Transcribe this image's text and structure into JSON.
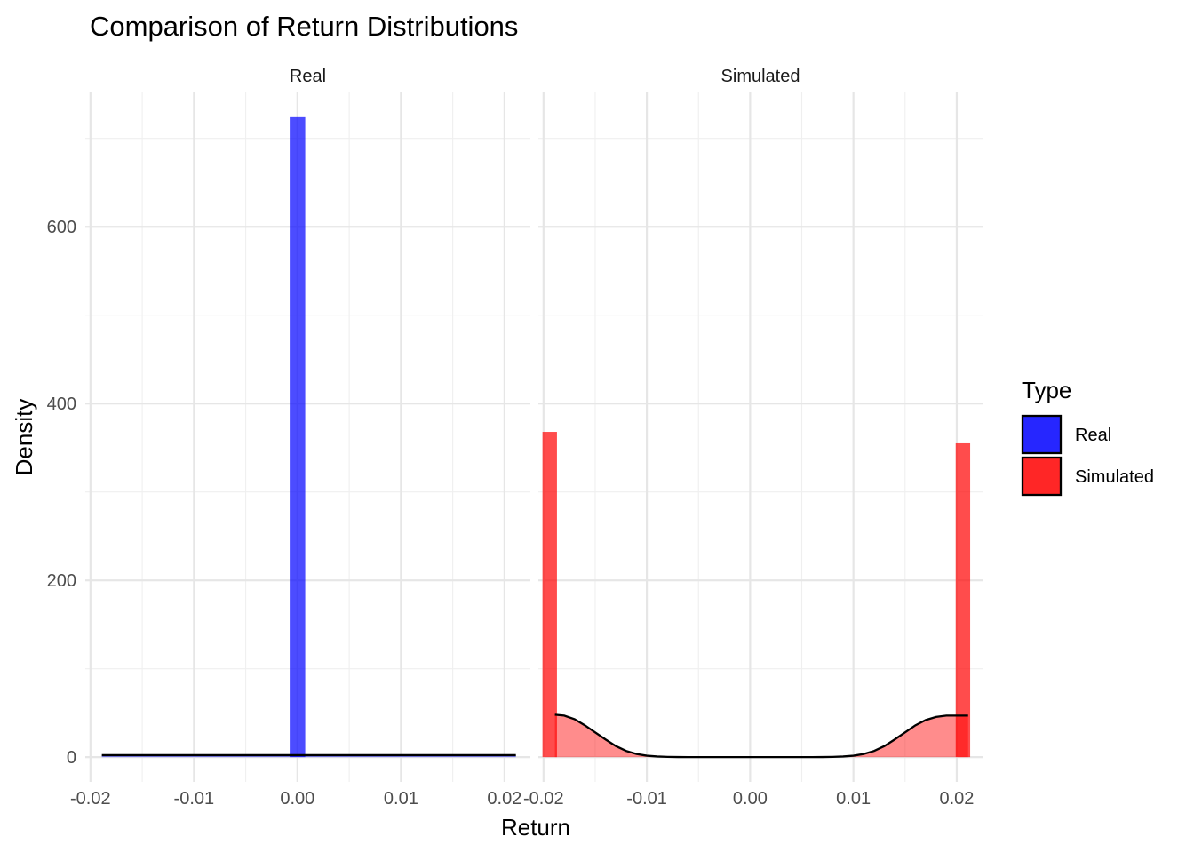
{
  "chart_data": {
    "type": "histogram",
    "title": "Comparison of Return Distributions",
    "xlabel": "Return",
    "ylabel": "Density",
    "xlim": [
      -0.0205,
      0.0225
    ],
    "ylim": [
      -28,
      752
    ],
    "x_ticks": [
      -0.02,
      -0.01,
      0.0,
      0.01,
      0.02
    ],
    "x_tick_labels": [
      "-0.02",
      "-0.01",
      "0.00",
      "0.01",
      "0.02"
    ],
    "y_ticks": [
      0,
      200,
      400,
      600
    ],
    "y_tick_labels": [
      "0",
      "200",
      "400",
      "600"
    ],
    "grid": true,
    "legend": {
      "title": "Type",
      "position": "right",
      "entries": [
        {
          "label": "Real",
          "color": "#0000ff"
        },
        {
          "label": "Simulated",
          "color": "#ff0000"
        }
      ]
    },
    "panels": [
      {
        "strip": "Real",
        "fill": "#0000ff",
        "bars": [
          {
            "x0": -0.00075,
            "x1": 0.00075,
            "density": 724
          }
        ],
        "density_curve": [
          [
            -0.0189,
            2.2
          ],
          [
            0.0211,
            2.2
          ]
        ]
      },
      {
        "strip": "Simulated",
        "fill": "#ff0000",
        "bars": [
          {
            "x0": -0.0201,
            "x1": -0.0187,
            "density": 368
          },
          {
            "x0": 0.0199,
            "x1": 0.0213,
            "density": 355
          }
        ],
        "density_curve": [
          [
            -0.0189,
            48
          ],
          [
            -0.018,
            47
          ],
          [
            -0.017,
            43
          ],
          [
            -0.016,
            36
          ],
          [
            -0.015,
            28
          ],
          [
            -0.014,
            20
          ],
          [
            -0.013,
            12.5
          ],
          [
            -0.012,
            7
          ],
          [
            -0.011,
            3.5
          ],
          [
            -0.01,
            1.6
          ],
          [
            -0.009,
            0.7
          ],
          [
            -0.008,
            0.3
          ],
          [
            -0.007,
            0.1
          ],
          [
            -0.006,
            0
          ],
          [
            0.0,
            0
          ],
          [
            0.006,
            0
          ],
          [
            0.007,
            0.1
          ],
          [
            0.008,
            0.3
          ],
          [
            0.009,
            0.7
          ],
          [
            0.01,
            1.6
          ],
          [
            0.011,
            3.5
          ],
          [
            0.012,
            7
          ],
          [
            0.013,
            12.5
          ],
          [
            0.014,
            20
          ],
          [
            0.015,
            28
          ],
          [
            0.016,
            36
          ],
          [
            0.017,
            42
          ],
          [
            0.018,
            45.5
          ],
          [
            0.019,
            47
          ],
          [
            0.0211,
            47
          ]
        ]
      }
    ]
  }
}
